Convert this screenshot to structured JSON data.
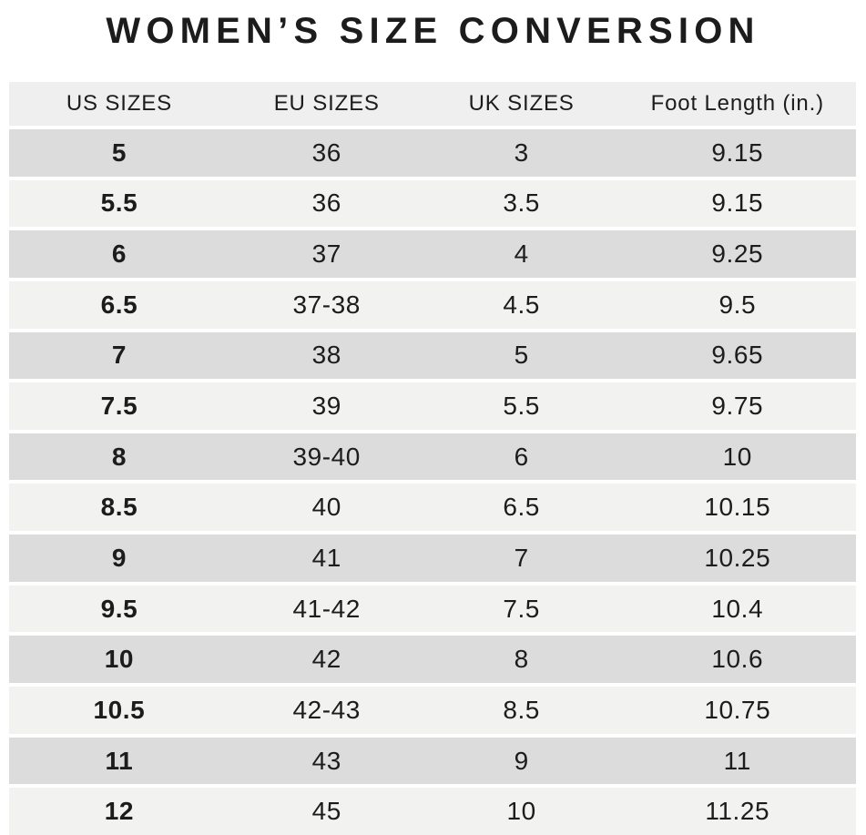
{
  "chart_data": {
    "type": "table",
    "title": "WOMEN’S SIZE CONVERSION",
    "columns": [
      "US SIZES",
      "EU SIZES",
      "UK SIZES",
      "Foot Length (in.)"
    ],
    "rows": [
      {
        "us": "5",
        "eu": "36",
        "uk": "3",
        "foot": "9.15"
      },
      {
        "us": "5.5",
        "eu": "36",
        "uk": "3.5",
        "foot": "9.15"
      },
      {
        "us": "6",
        "eu": "37",
        "uk": "4",
        "foot": "9.25"
      },
      {
        "us": "6.5",
        "eu": "37-38",
        "uk": "4.5",
        "foot": "9.5"
      },
      {
        "us": "7",
        "eu": "38",
        "uk": "5",
        "foot": "9.65"
      },
      {
        "us": "7.5",
        "eu": "39",
        "uk": "5.5",
        "foot": "9.75"
      },
      {
        "us": "8",
        "eu": "39-40",
        "uk": "6",
        "foot": "10"
      },
      {
        "us": "8.5",
        "eu": "40",
        "uk": "6.5",
        "foot": "10.15"
      },
      {
        "us": "9",
        "eu": "41",
        "uk": "7",
        "foot": "10.25"
      },
      {
        "us": "9.5",
        "eu": "41-42",
        "uk": "7.5",
        "foot": "10.4"
      },
      {
        "us": "10",
        "eu": "42",
        "uk": "8",
        "foot": "10.6"
      },
      {
        "us": "10.5",
        "eu": "42-43",
        "uk": "8.5",
        "foot": "10.75"
      },
      {
        "us": "11",
        "eu": "43",
        "uk": "9",
        "foot": "11"
      },
      {
        "us": "12",
        "eu": "45",
        "uk": "10",
        "foot": "11.25"
      }
    ],
    "layout": {
      "row_striping": "alternating, first data row dark",
      "legend": "none",
      "grid": "white 4px separators between rows"
    }
  },
  "colors": {
    "background": "#ffffff",
    "header_bg": "#f0efef",
    "row_dark": "#dcdcdd",
    "row_light": "#f2f2f1",
    "text": "#1c1c1c"
  }
}
